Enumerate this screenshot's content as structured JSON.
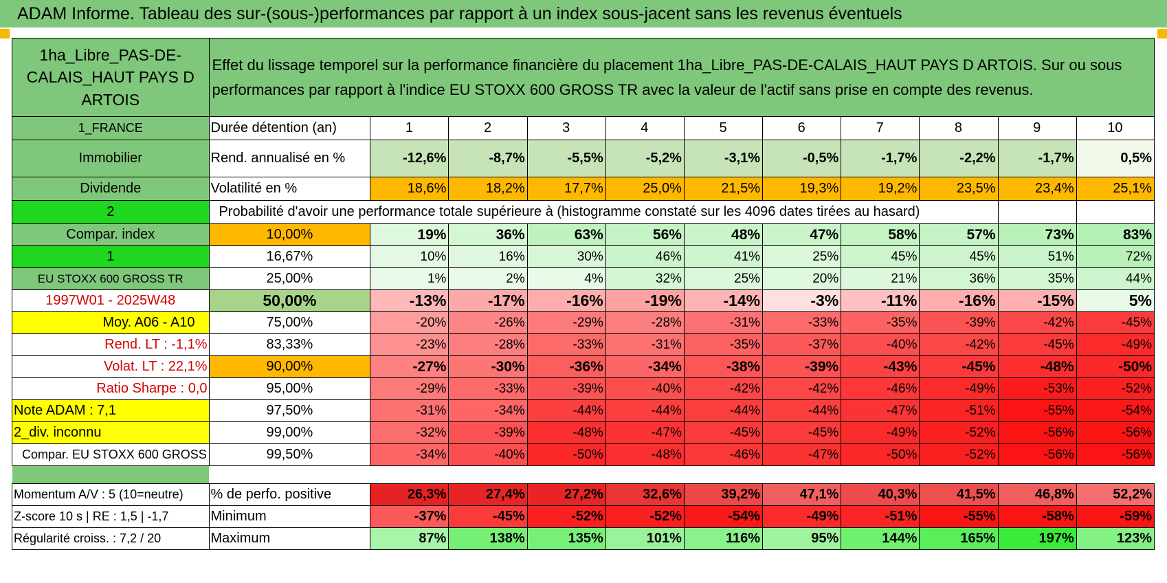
{
  "title": "ADAM Informe. Tableau des sur-(sous-)performances par rapport à un index sous-jacent sans les revenus éventuels",
  "header": {
    "asset_name": "1ha_Libre_PAS-DE-CALAIS_HAUT PAYS D ARTOIS",
    "description": "Effet du lissage temporel sur la performance financière du placement 1ha_Libre_PAS-DE-CALAIS_HAUT PAYS D ARTOIS. Sur ou sous performances par rapport à l'indice EU STOXX 600 GROSS TR avec la valeur de l'actif sans prise en compte des revenus."
  },
  "left": {
    "country": "1_FRANCE",
    "category": "Immobilier",
    "dividend": "Dividende",
    "selector1": "2",
    "compar_index": "Compar. index",
    "selector2": "1",
    "index_name": "EU STOXX 600 GROSS TR",
    "period": "1997W01 - 2025W48",
    "moy": "Moy. A06 - A10",
    "rend_lt": "Rend. LT :    -1,1%",
    "volat_lt": "Volat. LT :    22,1%",
    "sharpe": "Ratio Sharpe :     0,0",
    "note": "Note ADAM : 7,1",
    "div": "2_div. inconnu",
    "compar": "Compar. EU STOXX 600 GROSS TR",
    "momentum": "Momentum A/V : 5 (10=neutre)",
    "zscore": "Z-score 10 s | RE : 1,5 | -1,7",
    "regularite": "Régularité croiss. : 7,2 / 20"
  },
  "labels": {
    "duree": "Durée détention (an)",
    "rend": "Rend. annualisé en %",
    "vol": "Volatilité en %",
    "proba": "Probabilité d'avoir une performance totale supérieure à (histogramme constaté sur les 4096 dates tirées au hasard)",
    "pct_pos": "% de perfo. positive",
    "minimum": "Minimum",
    "maximum": "Maximum"
  },
  "years": [
    "1",
    "2",
    "3",
    "4",
    "5",
    "6",
    "7",
    "8",
    "9",
    "10"
  ],
  "rend": [
    "-12,6%",
    "-8,7%",
    "-5,5%",
    "-5,2%",
    "-3,1%",
    "-0,5%",
    "-1,7%",
    "-2,2%",
    "-1,7%",
    "0,5%"
  ],
  "vol": [
    "18,6%",
    "18,2%",
    "17,7%",
    "25,0%",
    "21,5%",
    "19,3%",
    "19,2%",
    "23,5%",
    "23,4%",
    "25,1%"
  ],
  "quantiles": [
    {
      "q": "10,00%",
      "vals": [
        "19%",
        "36%",
        "63%",
        "56%",
        "48%",
        "47%",
        "58%",
        "57%",
        "73%",
        "83%"
      ]
    },
    {
      "q": "16,67%",
      "vals": [
        "10%",
        "16%",
        "30%",
        "46%",
        "41%",
        "25%",
        "45%",
        "45%",
        "51%",
        "72%"
      ]
    },
    {
      "q": "25,00%",
      "vals": [
        "1%",
        "2%",
        "4%",
        "32%",
        "25%",
        "20%",
        "21%",
        "36%",
        "35%",
        "44%"
      ]
    },
    {
      "q": "50,00%",
      "vals": [
        "-13%",
        "-17%",
        "-16%",
        "-19%",
        "-14%",
        "-3%",
        "-11%",
        "-16%",
        "-15%",
        "5%"
      ]
    },
    {
      "q": "75,00%",
      "vals": [
        "-20%",
        "-26%",
        "-29%",
        "-28%",
        "-31%",
        "-33%",
        "-35%",
        "-39%",
        "-42%",
        "-45%"
      ]
    },
    {
      "q": "83,33%",
      "vals": [
        "-23%",
        "-28%",
        "-33%",
        "-31%",
        "-35%",
        "-37%",
        "-40%",
        "-42%",
        "-45%",
        "-49%"
      ]
    },
    {
      "q": "90,00%",
      "vals": [
        "-27%",
        "-30%",
        "-36%",
        "-34%",
        "-38%",
        "-39%",
        "-43%",
        "-45%",
        "-48%",
        "-50%"
      ]
    },
    {
      "q": "95,00%",
      "vals": [
        "-29%",
        "-33%",
        "-39%",
        "-40%",
        "-42%",
        "-42%",
        "-46%",
        "-49%",
        "-53%",
        "-52%"
      ]
    },
    {
      "q": "97,50%",
      "vals": [
        "-31%",
        "-34%",
        "-44%",
        "-44%",
        "-44%",
        "-44%",
        "-47%",
        "-51%",
        "-55%",
        "-54%"
      ]
    },
    {
      "q": "99,00%",
      "vals": [
        "-32%",
        "-39%",
        "-48%",
        "-47%",
        "-45%",
        "-45%",
        "-49%",
        "-52%",
        "-56%",
        "-56%"
      ]
    },
    {
      "q": "99,50%",
      "vals": [
        "-34%",
        "-40%",
        "-50%",
        "-48%",
        "-46%",
        "-47%",
        "-50%",
        "-52%",
        "-56%",
        "-56%"
      ]
    }
  ],
  "pct_pos": [
    "26,3%",
    "27,4%",
    "27,2%",
    "32,6%",
    "39,2%",
    "47,1%",
    "40,3%",
    "41,5%",
    "46,8%",
    "52,2%"
  ],
  "minimum": [
    "-37%",
    "-45%",
    "-52%",
    "-52%",
    "-54%",
    "-49%",
    "-51%",
    "-55%",
    "-58%",
    "-59%"
  ],
  "maximum": [
    "87%",
    "138%",
    "135%",
    "101%",
    "116%",
    "95%",
    "144%",
    "165%",
    "197%",
    "123%"
  ]
}
